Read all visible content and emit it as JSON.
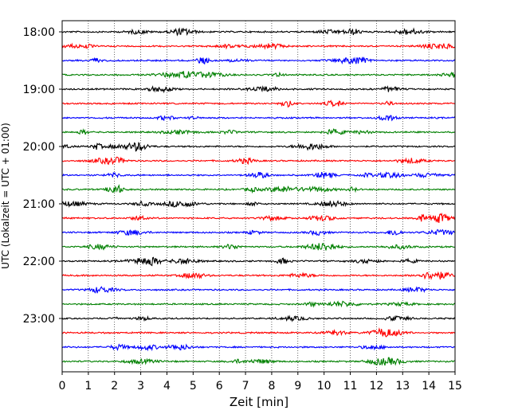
{
  "chart_data": {
    "type": "line",
    "xlabel": "Zeit  [min]",
    "ylabel": "UTC (Lokalzeit = UTC + 01:00)",
    "xlim": [
      0,
      15
    ],
    "x_ticks": [
      "0",
      "1",
      "2",
      "3",
      "4",
      "5",
      "6",
      "7",
      "8",
      "9",
      "10",
      "11",
      "12",
      "13",
      "14",
      "15"
    ],
    "y_ticks": [
      "18:00",
      "19:00",
      "20:00",
      "21:00",
      "22:00",
      "23:00"
    ],
    "trace_interval_min": 15,
    "trace_start": "18:00",
    "trace_count": 24,
    "trace_colors": [
      "#000000",
      "#ff0000",
      "#0000ff",
      "#008000"
    ],
    "grid_x": "dotted",
    "series": [
      {
        "start": "18:00",
        "color": "#000000"
      },
      {
        "start": "18:15",
        "color": "#ff0000"
      },
      {
        "start": "18:30",
        "color": "#0000ff"
      },
      {
        "start": "18:45",
        "color": "#008000"
      },
      {
        "start": "19:00",
        "color": "#000000"
      },
      {
        "start": "19:15",
        "color": "#ff0000"
      },
      {
        "start": "19:30",
        "color": "#0000ff"
      },
      {
        "start": "19:45",
        "color": "#008000"
      },
      {
        "start": "20:00",
        "color": "#000000"
      },
      {
        "start": "20:15",
        "color": "#ff0000"
      },
      {
        "start": "20:30",
        "color": "#0000ff"
      },
      {
        "start": "20:45",
        "color": "#008000"
      },
      {
        "start": "21:00",
        "color": "#000000"
      },
      {
        "start": "21:15",
        "color": "#ff0000"
      },
      {
        "start": "21:30",
        "color": "#0000ff"
      },
      {
        "start": "21:45",
        "color": "#008000"
      },
      {
        "start": "22:00",
        "color": "#000000"
      },
      {
        "start": "22:15",
        "color": "#ff0000"
      },
      {
        "start": "22:30",
        "color": "#0000ff"
      },
      {
        "start": "22:45",
        "color": "#008000"
      },
      {
        "start": "23:00",
        "color": "#000000"
      },
      {
        "start": "23:15",
        "color": "#ff0000"
      },
      {
        "start": "23:30",
        "color": "#0000ff"
      },
      {
        "start": "23:45",
        "color": "#008000"
      }
    ]
  }
}
